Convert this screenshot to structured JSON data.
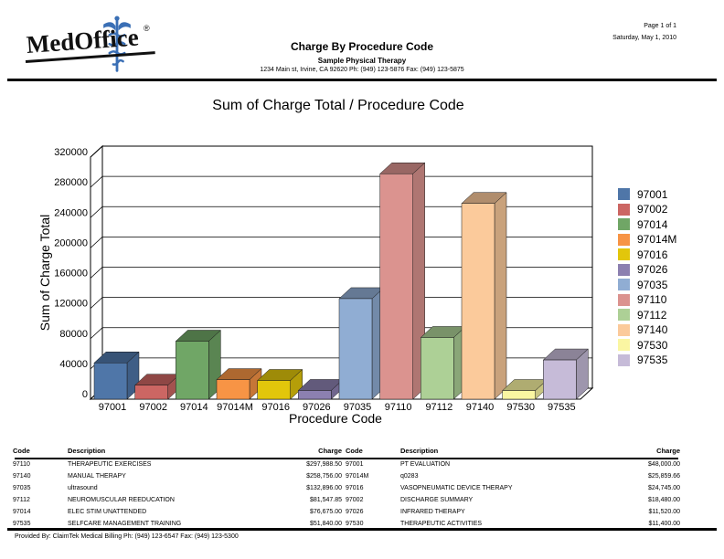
{
  "header": {
    "logo_text": "MedOffice",
    "logo_mark": "®",
    "report_title": "Charge By Procedure Code",
    "practice_name": "Sample Physical Therapy",
    "practice_address": "1234 Main st, Irvine, CA 92620 Ph: (949) 123-5876 Fax: (949) 123-5875",
    "page_info": "Page 1 of 1",
    "report_date": "Saturday, May 1, 2010"
  },
  "chart_data": {
    "type": "bar",
    "style_3d": true,
    "title": "Sum of Charge Total / Procedure Code",
    "xlabel": "Procedure Code",
    "ylabel": "Sum of Charge Total",
    "categories": [
      "97001",
      "97002",
      "97014",
      "97014M",
      "97016",
      "97026",
      "97035",
      "97110",
      "97112",
      "97140",
      "97530",
      "97535"
    ],
    "values": [
      48000.0,
      18480.0,
      76675.0,
      25859.66,
      24745.0,
      11520.0,
      132896.0,
      297988.5,
      81547.85,
      258756.0,
      11400.0,
      51840.0
    ],
    "colors": [
      "#4F76A8",
      "#CC6663",
      "#70A666",
      "#F79445",
      "#E2C60B",
      "#8C80B0",
      "#90ADD3",
      "#DB938F",
      "#ADD096",
      "#FBCA9B",
      "#FAF6A2",
      "#C6BBD8"
    ],
    "ylim": [
      0,
      320000
    ],
    "ytick_step": 40000,
    "ytick_labels": [
      "0",
      "40000",
      "80000",
      "120000",
      "160000",
      "200000",
      "240000",
      "280000",
      "320000"
    ],
    "grid": true,
    "legend_position": "right",
    "legend_entries": [
      "97001",
      "97002",
      "97014",
      "97014M",
      "97016",
      "97026",
      "97035",
      "97110",
      "97112",
      "97140",
      "97530",
      "97535"
    ]
  },
  "tables": {
    "columns": [
      "Code",
      "Description",
      "Charge"
    ],
    "left_rows": [
      [
        "97110",
        "THERAPEUTIC EXERCISES",
        "$297,988.50"
      ],
      [
        "97140",
        "MANUAL THERAPY",
        "$258,756.00"
      ],
      [
        "97035",
        "ultrasound",
        "$132,896.00"
      ],
      [
        "97112",
        "NEUROMUSCULAR REEDUCATION",
        "$81,547.85"
      ],
      [
        "97014",
        "ELEC STIM UNATTENDED",
        "$76,675.00"
      ],
      [
        "97535",
        "SELFCARE MANAGEMENT TRAINING",
        "$51,840.00"
      ]
    ],
    "right_rows": [
      [
        "97001",
        "PT EVALUATION",
        "$48,000.00"
      ],
      [
        "97014M",
        "q0283",
        "$25,859.66"
      ],
      [
        "97016",
        "VASOPNEUMATIC DEVICE THERAPY",
        "$24,745.00"
      ],
      [
        "97002",
        "DISCHARGE SUMMARY",
        "$18,480.00"
      ],
      [
        "97026",
        "INFRARED THERAPY",
        "$11,520.00"
      ],
      [
        "97530",
        "THERAPEUTIC ACTIVITIES",
        "$11,400.00"
      ]
    ]
  },
  "footer": {
    "provided_by": "Provided By: ClaimTek Medical Billing Ph: (949) 123-6547 Fax: (949) 123-5300"
  }
}
